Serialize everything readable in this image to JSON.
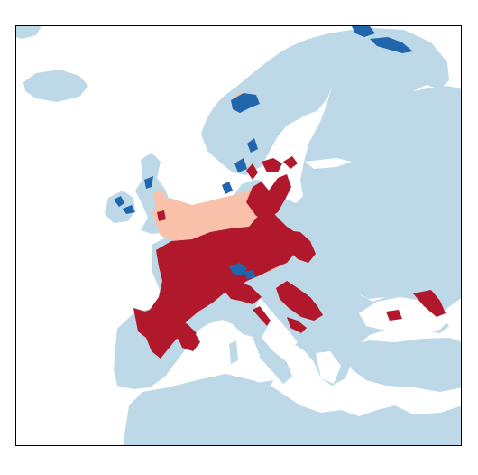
{
  "map": {
    "region": "Europe",
    "legend": null,
    "title": "",
    "colors": {
      "background": "#ffffff",
      "land": "#bdd9e7",
      "class_dark_blue": "#2166ac",
      "class_light_salmon": "#f9c1aa",
      "class_dark_red": "#b2182b",
      "frame": "#000000"
    },
    "classes": [
      {
        "key": "dark_red",
        "color": "#b2182b"
      },
      {
        "key": "light_salmon",
        "color": "#f9c1aa"
      },
      {
        "key": "dark_blue",
        "color": "#2166ac"
      }
    ]
  }
}
